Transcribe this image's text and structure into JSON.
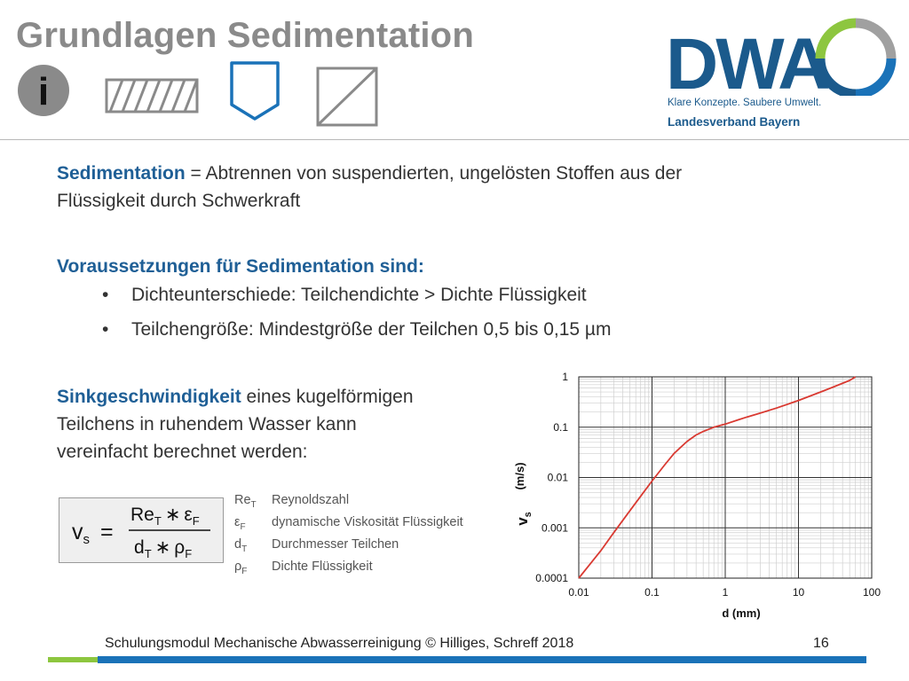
{
  "slide": {
    "title": "Grundlagen Sedimentation",
    "info_icon_glyph": "i"
  },
  "logo": {
    "wordmark": "DWA",
    "tagline": "Klare Konzepte. Saubere Umwelt.",
    "region": "Landesverband Bayern",
    "colors": {
      "blue": "#1b5a8c",
      "green": "#8dc63f",
      "gray": "#a0a0a0"
    }
  },
  "content": {
    "definition": {
      "term": "Sedimentation",
      "rest_line1": " = Abtrennen von suspendierten, ungelösten Stoffen aus der",
      "line2": "Flüssigkeit durch Schwerkraft"
    },
    "prerequisites": {
      "heading": "Voraussetzungen für Sedimentation sind:",
      "bullet_char": "•",
      "items": [
        "Dichteunterschiede: Teilchendichte > Dichte Flüssigkeit",
        "Teilchengröße: Mindestgröße der Teilchen 0,5 bis 0,15 µm"
      ]
    },
    "settling": {
      "term": "Sinkgeschwindigkeit",
      "rest_line1": " eines kugelförmigen",
      "line2": "Teilchens in ruhendem Wasser kann",
      "line3": "vereinfacht berechnet werden:"
    }
  },
  "formula": {
    "lhs": "v",
    "lhs_sub": "s",
    "equals": "=",
    "num_a": "Re",
    "num_a_sub": "T",
    "op": "∗",
    "num_b": "ε",
    "num_b_sub": "F",
    "den_a": "d",
    "den_a_sub": "T",
    "den_b": "ρ",
    "den_b_sub": "F"
  },
  "symbols": [
    {
      "sym": "Re",
      "sub": "T",
      "desc": "Reynoldszahl"
    },
    {
      "sym": "ε",
      "sub": "F",
      "desc": "dynamische Viskosität Flüssigkeit"
    },
    {
      "sym": "d",
      "sub": "T",
      "desc": "Durchmesser Teilchen"
    },
    {
      "sym": "ρ",
      "sub": "F",
      "desc": "Dichte Flüssigkeit"
    }
  ],
  "footer": {
    "text": "Schulungsmodul Mechanische Abwasserreinigung © Hilliges, Schreff  2018",
    "page": "16"
  },
  "chart_data": {
    "type": "line",
    "title": "",
    "xlabel": "d (mm)",
    "ylabel_symbol": "v",
    "ylabel_sub": "s",
    "ylabel_unit": "(m/s)",
    "xscale": "log",
    "yscale": "log",
    "xlim": [
      0.01,
      100
    ],
    "ylim": [
      0.0001,
      1
    ],
    "grid": true,
    "x_ticks": [
      "0.01",
      "0.1",
      "1",
      "10",
      "100"
    ],
    "y_ticks": [
      "1",
      "0.1",
      "0.01",
      "0.001",
      "0.0001"
    ],
    "line_color": "#d93a32",
    "series": [
      {
        "x": [
          0.01,
          0.02,
          0.03,
          0.05,
          0.08,
          0.1,
          0.15,
          0.2,
          0.3,
          0.4,
          0.5,
          0.7,
          1,
          1.5,
          2,
          3,
          5,
          10,
          20,
          30,
          50,
          60
        ],
        "y": [
          0.0001,
          0.00035,
          0.0008,
          0.0022,
          0.0055,
          0.0085,
          0.018,
          0.03,
          0.052,
          0.07,
          0.082,
          0.1,
          0.115,
          0.14,
          0.16,
          0.19,
          0.24,
          0.34,
          0.5,
          0.63,
          0.85,
          1.0
        ]
      }
    ]
  }
}
